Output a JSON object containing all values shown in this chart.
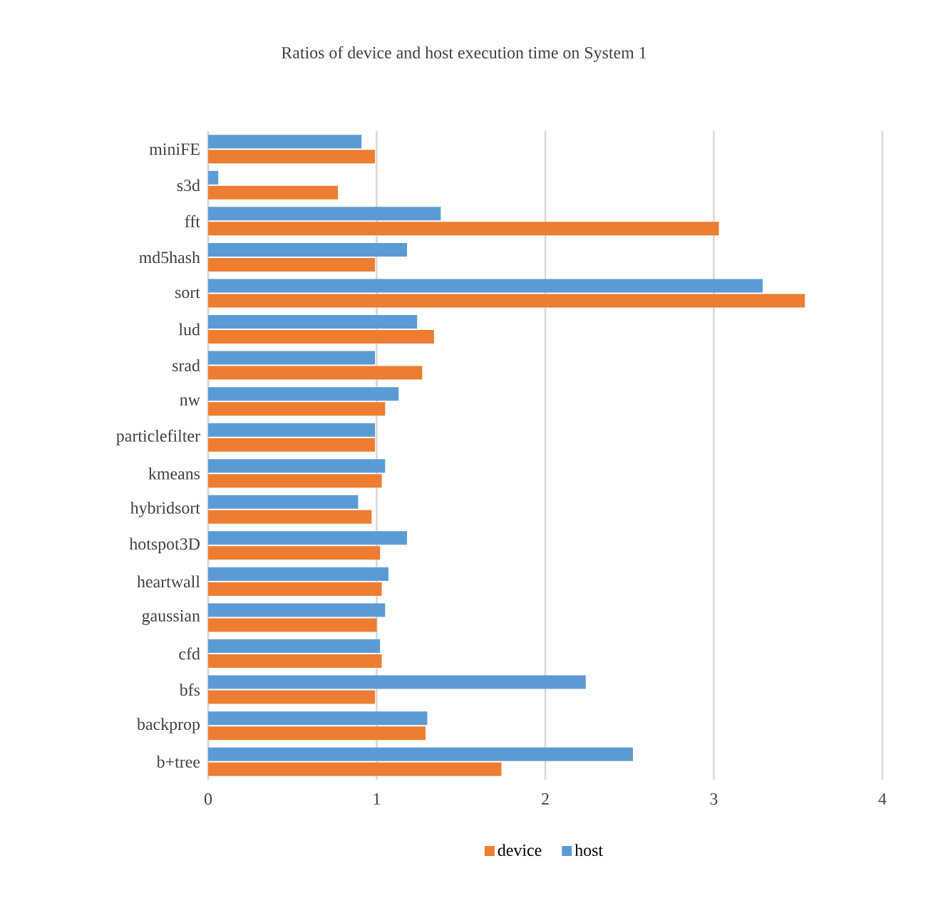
{
  "chart_data": {
    "type": "bar",
    "orientation": "horizontal",
    "title": "Ratios of device and host execution time on System 1",
    "categories": [
      "miniFE",
      "s3d",
      "fft",
      "md5hash",
      "sort",
      "lud",
      "srad",
      "nw",
      "particlefilter",
      "kmeans",
      "hybridsort",
      "hotspot3D",
      "heartwall",
      "gaussian",
      "cfd",
      "bfs",
      "backprop",
      "b+tree"
    ],
    "series": [
      {
        "name": "device",
        "color": "#ed7d31",
        "values": [
          0.99,
          0.77,
          3.03,
          0.99,
          3.54,
          1.34,
          1.27,
          1.05,
          0.99,
          1.03,
          0.97,
          1.02,
          1.03,
          1.0,
          1.03,
          0.99,
          1.29,
          1.74
        ]
      },
      {
        "name": "host",
        "color": "#5b9bd5",
        "values": [
          0.91,
          0.06,
          1.38,
          1.18,
          3.29,
          1.24,
          0.99,
          1.13,
          0.99,
          1.05,
          0.89,
          1.18,
          1.07,
          1.05,
          1.02,
          2.24,
          1.3,
          2.52
        ]
      }
    ],
    "xlim": [
      0,
      4
    ],
    "xticks": [
      0,
      1,
      2,
      3,
      4
    ],
    "grid": "x",
    "legend": "bottom"
  }
}
